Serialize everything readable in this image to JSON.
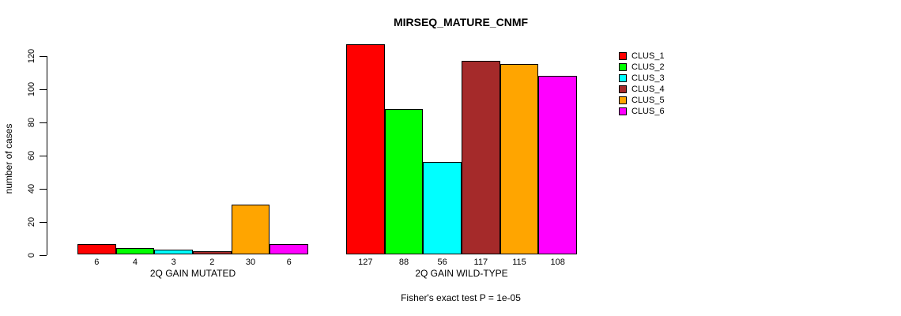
{
  "title": "MIRSEQ_MATURE_CNMF",
  "footer": "Fisher's exact test P = 1e-05",
  "y_axis": {
    "label": "number of cases",
    "ticks": [
      0,
      20,
      40,
      60,
      80,
      100,
      120
    ]
  },
  "chart_data": {
    "type": "bar",
    "title": "MIRSEQ_MATURE_CNMF",
    "xlabel": "",
    "ylabel": "number of cases",
    "ylim": [
      0,
      127
    ],
    "yticks": [
      0,
      20,
      40,
      60,
      80,
      100,
      120
    ],
    "grid": false,
    "legend_position": "right",
    "bar_value_labels_shown": true,
    "annotation": "Fisher's exact test P = 1e-05",
    "groups": [
      "2Q GAIN MUTATED",
      "2Q GAIN WILD-TYPE"
    ],
    "series": [
      {
        "name": "CLUS_1",
        "color": "#FF0000",
        "values": [
          6,
          127
        ]
      },
      {
        "name": "CLUS_2",
        "color": "#00FF00",
        "values": [
          4,
          88
        ]
      },
      {
        "name": "CLUS_3",
        "color": "#00FFFF",
        "values": [
          3,
          56
        ]
      },
      {
        "name": "CLUS_4",
        "color": "#A52A2A",
        "values": [
          2,
          117
        ]
      },
      {
        "name": "CLUS_5",
        "color": "#FFA500",
        "values": [
          30,
          115
        ]
      },
      {
        "name": "CLUS_6",
        "color": "#FF00FF",
        "values": [
          6,
          108
        ]
      }
    ]
  }
}
